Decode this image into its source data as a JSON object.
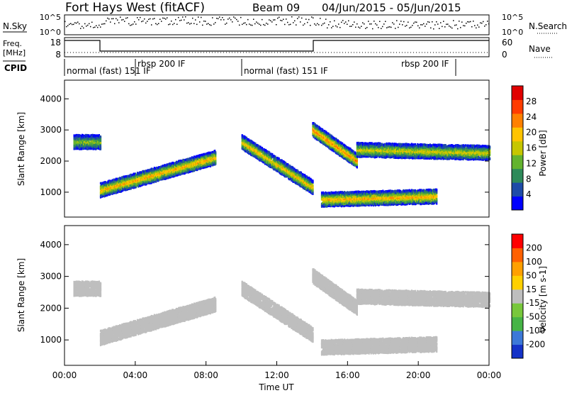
{
  "header": {
    "title": "Fort Hays West (fitACF)",
    "beam": "Beam 09",
    "date_range": "04/Jun/2015 - 05/Jun/2015"
  },
  "panels": {
    "nsky": {
      "label": "N.Sky",
      "right_label": "N.Search",
      "ticks_left": [
        "10^5",
        "10^0"
      ],
      "ticks_right": [
        "10^5",
        "10^0"
      ]
    },
    "freq": {
      "label": "Freq.",
      "unit": "[MHz]",
      "ticks_left": [
        "18",
        "8"
      ],
      "right_label": "Nave",
      "ticks_right": [
        "60",
        "0"
      ]
    },
    "cpid": {
      "label": "CPID",
      "modes": [
        "normal (fast) 151 IF",
        "rbsp 200 IF",
        "normal (fast) 151 IF",
        "rbsp 200 IF"
      ]
    }
  },
  "colors": {
    "power_scale": [
      "#0000ff",
      "#1e4ba8",
      "#2e8a5a",
      "#63b32e",
      "#c6c600",
      "#ffc300",
      "#ff8000",
      "#ff3c00",
      "#e00000"
    ],
    "velocity_scale": [
      "#1432c8",
      "#3c78d8",
      "#46b446",
      "#78c83c",
      "#bebebe",
      "#ffd000",
      "#ffa000",
      "#ff6000",
      "#ff0000"
    ],
    "ground_scatter": "#bebebe"
  },
  "chart_data": [
    {
      "type": "heatmap",
      "name": "power",
      "ylabel": "Slant Range [km]",
      "yticks": [
        1000,
        2000,
        3000,
        4000
      ],
      "ylim": [
        200,
        4600
      ],
      "xlim": [
        "00:00",
        "24:00"
      ],
      "colorbar": {
        "label": "Power [dB]",
        "ticks": [
          4,
          8,
          12,
          16,
          20,
          24,
          28
        ]
      },
      "features": [
        {
          "from": "00:30",
          "to": "02:00",
          "range_start_km": 2650,
          "range_end_km": 2650,
          "peak_db": 16
        },
        {
          "from": "02:00",
          "to": "08:30",
          "range_start_km": 1100,
          "range_end_km": 2150,
          "peak_db": 24
        },
        {
          "from": "10:00",
          "to": "14:00",
          "range_start_km": 2650,
          "range_end_km": 1200,
          "peak_db": 22
        },
        {
          "from": "14:00",
          "to": "16:30",
          "range_start_km": 3050,
          "range_end_km": 2050,
          "peak_db": 26
        },
        {
          "from": "16:30",
          "to": "24:00",
          "range_start_km": 2400,
          "range_end_km": 2300,
          "peak_db": 20
        },
        {
          "from": "14:30",
          "to": "21:00",
          "range_start_km": 800,
          "range_end_km": 900,
          "peak_db": 24
        }
      ]
    },
    {
      "type": "heatmap",
      "name": "velocity",
      "ylabel": "Slant Range [km]",
      "yticks": [
        1000,
        2000,
        3000,
        4000
      ],
      "ylim": [
        200,
        4600
      ],
      "xlabel": "Time UT",
      "xticks": [
        "00:00",
        "04:00",
        "08:00",
        "12:00",
        "16:00",
        "20:00",
        "00:00"
      ],
      "colorbar": {
        "label": "Velocity [m s-1]",
        "ticks": [
          200,
          100,
          50,
          15,
          -15,
          -50,
          -100,
          -200
        ]
      }
    }
  ]
}
